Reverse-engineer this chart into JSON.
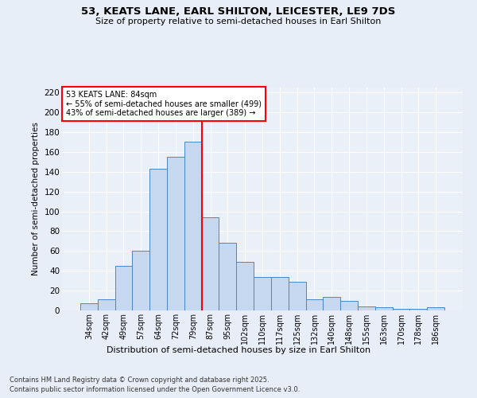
{
  "title_line1": "53, KEATS LANE, EARL SHILTON, LEICESTER, LE9 7DS",
  "title_line2": "Size of property relative to semi-detached houses in Earl Shilton",
  "xlabel": "Distribution of semi-detached houses by size in Earl Shilton",
  "ylabel": "Number of semi-detached properties",
  "categories": [
    "34sqm",
    "42sqm",
    "49sqm",
    "57sqm",
    "64sqm",
    "72sqm",
    "79sqm",
    "87sqm",
    "95sqm",
    "102sqm",
    "110sqm",
    "117sqm",
    "125sqm",
    "132sqm",
    "140sqm",
    "148sqm",
    "155sqm",
    "163sqm",
    "170sqm",
    "178sqm",
    "186sqm"
  ],
  "values": [
    7,
    11,
    45,
    60,
    143,
    155,
    170,
    94,
    68,
    49,
    34,
    34,
    29,
    11,
    14,
    10,
    4,
    3,
    2,
    2,
    3
  ],
  "bar_color": "#c5d8f0",
  "bar_edge_color": "#4a86c8",
  "vline_color": "red",
  "vline_pos": 6.5,
  "annotation_title": "53 KEATS LANE: 84sqm",
  "annotation_line2": "← 55% of semi-detached houses are smaller (499)",
  "annotation_line3": "43% of semi-detached houses are larger (389) →",
  "ylim": [
    0,
    225
  ],
  "yticks": [
    0,
    20,
    40,
    60,
    80,
    100,
    120,
    140,
    160,
    180,
    200,
    220
  ],
  "footer_line1": "Contains HM Land Registry data © Crown copyright and database right 2025.",
  "footer_line2": "Contains public sector information licensed under the Open Government Licence v3.0.",
  "bg_color": "#e8eef8",
  "plot_bg_color": "#eaf0f8"
}
